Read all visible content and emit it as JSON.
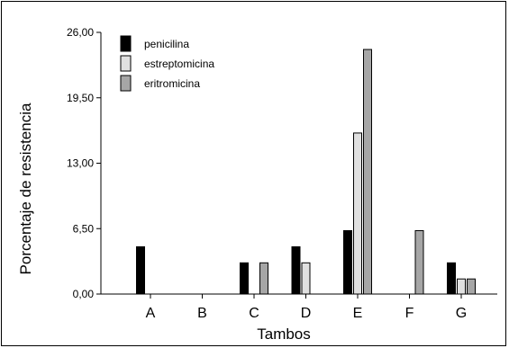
{
  "chart_data": {
    "type": "bar",
    "xlabel": "Tambos",
    "ylabel": "Porcentaje de resistencia",
    "ylim": [
      0,
      26
    ],
    "yticks": [
      "0,00",
      "6,50",
      "13,00",
      "19,50",
      "26,00"
    ],
    "yticks_values": [
      0,
      6.5,
      13,
      19.5,
      26
    ],
    "categories": [
      "A",
      "B",
      "C",
      "D",
      "E",
      "F",
      "G"
    ],
    "series": [
      {
        "name": "penicilina",
        "color": "#000000",
        "values": [
          4.7,
          0,
          3.1,
          4.7,
          6.3,
          0,
          3.1
        ]
      },
      {
        "name": "estreptomicina",
        "color": "#e0e0e0",
        "values": [
          0,
          0,
          0,
          3.1,
          16.0,
          0,
          1.5
        ]
      },
      {
        "name": "eritromicina",
        "color": "#a6a6a6",
        "values": [
          0,
          0,
          3.1,
          0,
          24.3,
          6.3,
          1.5
        ]
      }
    ],
    "legend_position": "top-left",
    "grid": false
  }
}
